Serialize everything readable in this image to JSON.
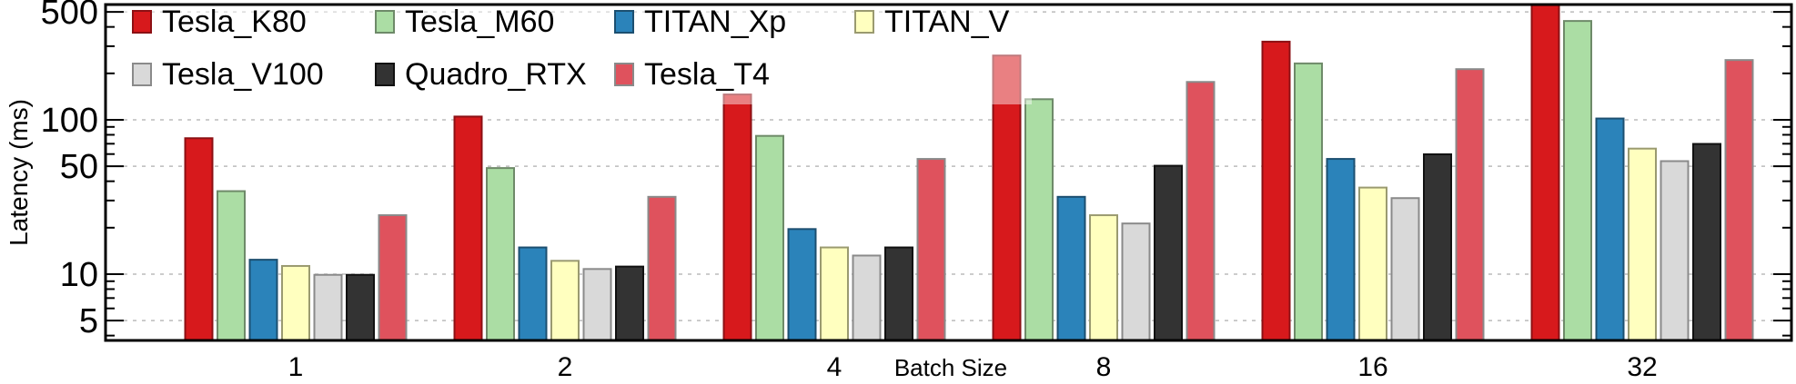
{
  "chart_data": {
    "type": "bar",
    "title": "",
    "xlabel": "Batch Size",
    "ylabel": "Latency (ms)",
    "yscale": "log",
    "ylim": [
      3.7,
      565
    ],
    "yticks": [
      5,
      10,
      50,
      100,
      500
    ],
    "ytick_labels": [
      "5",
      "10",
      "50",
      "100",
      "500"
    ],
    "grid": "horizontal dotted at major ticks",
    "legend_position": "top-left",
    "categories": [
      "1",
      "2",
      "4",
      "8",
      "16",
      "32"
    ],
    "series": [
      {
        "name": "Tesla_K80",
        "color": "#d7191c",
        "edge": "#8c1014",
        "values": [
          76,
          105,
          146,
          261,
          321,
          600
        ]
      },
      {
        "name": "Tesla_M60",
        "color": "#abdda4",
        "edge": "#6e8a69",
        "values": [
          34.5,
          48.7,
          78.7,
          136,
          232,
          437
        ]
      },
      {
        "name": "TITAN_Xp",
        "color": "#2b83ba",
        "edge": "#1c4f70",
        "values": [
          12.4,
          14.9,
          19.6,
          31.7,
          55.8,
          102
        ]
      },
      {
        "name": "TITAN_V",
        "color": "#ffffbf",
        "edge": "#9a9a70",
        "values": [
          11.3,
          12.2,
          14.9,
          24.1,
          36.4,
          65.1
        ]
      },
      {
        "name": "Tesla_V100",
        "color": "#d9d9d9",
        "edge": "#8a8a8a",
        "values": [
          9.9,
          10.8,
          13.2,
          21.3,
          31.1,
          54
        ]
      },
      {
        "name": "Quadro_RTX",
        "color": "#333333",
        "edge": "#111111",
        "values": [
          9.9,
          11.2,
          14.9,
          50.4,
          59.8,
          69.8
        ]
      },
      {
        "name": "Tesla_T4",
        "color": "#df525d",
        "edge": "#8a8a8a",
        "values": [
          24.1,
          31.7,
          55.8,
          176,
          213,
          244
        ]
      }
    ]
  }
}
